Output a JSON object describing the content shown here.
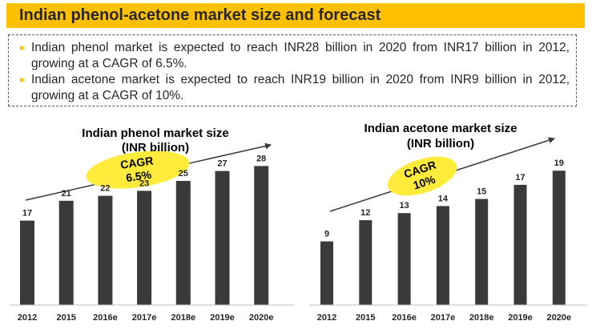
{
  "header": {
    "title": "Indian phenol-acetone market size and forecast"
  },
  "bullets": [
    {
      "text": "Indian phenol market is expected to reach INR28 billion in 2020 from INR17 billion in 2012, growing at a CAGR of 6.5%.",
      "icon": "triangle-bullet-icon"
    },
    {
      "text": "Indian acetone market is expected to reach INR19 billion in 2020 from INR9 billion in 2012, growing at a CAGR of 10%.",
      "icon": "triangle-bullet-icon"
    }
  ],
  "colors": {
    "accent": "#ffc000",
    "bar": "#3a3a3a",
    "ellipse": "#ffeb3b",
    "text": "#262626"
  },
  "chart_data": [
    {
      "type": "bar",
      "title": "Indian phenol market size",
      "subtitle": "(INR billion)",
      "categories": [
        "2012",
        "2015",
        "2016e",
        "2017e",
        "2018e",
        "2019e",
        "2020e"
      ],
      "values": [
        17,
        21,
        22,
        23,
        25,
        27,
        28
      ],
      "data_labels": [
        "17",
        "21",
        "22",
        "23",
        "25",
        "27",
        "28"
      ],
      "ylim": [
        0,
        30
      ],
      "grid": false,
      "annotation": {
        "line1": "CAGR",
        "line2": "6.5%"
      }
    },
    {
      "type": "bar",
      "title": "Indian acetone market size",
      "subtitle": "(INR billion)",
      "categories": [
        "2012",
        "2015",
        "2016e",
        "2017e",
        "2018e",
        "2019e",
        "2020e"
      ],
      "values": [
        9,
        12,
        13,
        14,
        15,
        17,
        19
      ],
      "data_labels": [
        "9",
        "12",
        "13",
        "14",
        "15",
        "17",
        "19"
      ],
      "ylim": [
        0,
        20.5
      ],
      "grid": false,
      "annotation": {
        "line1": "CAGR",
        "line2": "10%"
      }
    }
  ]
}
